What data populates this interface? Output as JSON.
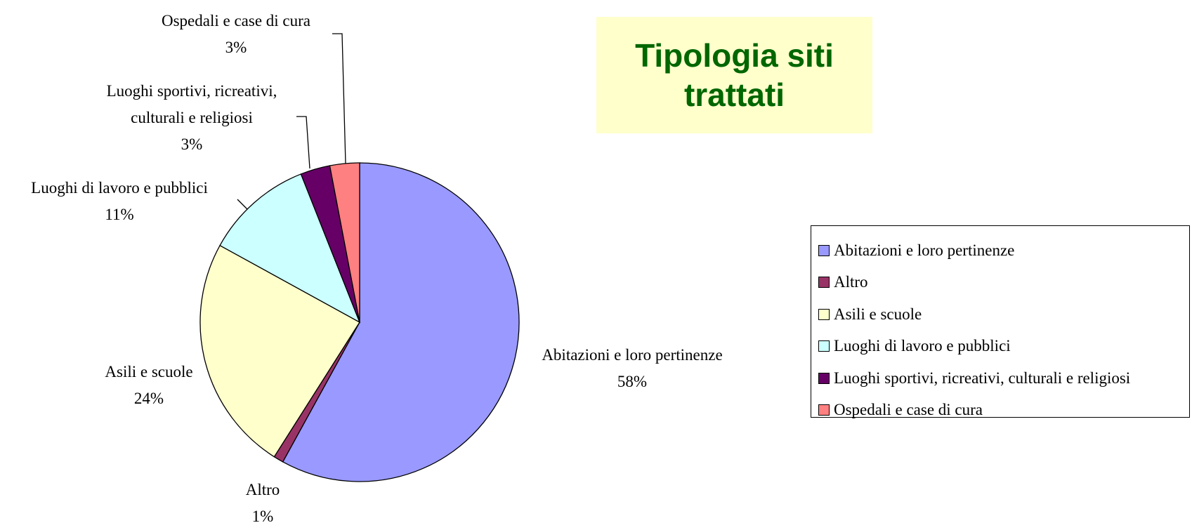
{
  "chart_data": {
    "type": "pie",
    "title": "Tipologia siti trattati",
    "categories": [
      "Abitazioni e loro pertinenze",
      "Altro",
      "Asili e scuole",
      "Luoghi di lavoro e pubblici",
      "Luoghi sportivi, ricreativi, culturali e religiosi",
      "Ospedali e case di cura"
    ],
    "values": [
      58,
      1,
      24,
      11,
      3,
      3
    ],
    "value_labels": [
      "58%",
      "1%",
      "24%",
      "11%",
      "3%",
      "3%"
    ],
    "colors": [
      "#9999ff",
      "#993366",
      "#ffffcc",
      "#ccffff",
      "#660066",
      "#ff8080"
    ],
    "legend": "right"
  }
}
